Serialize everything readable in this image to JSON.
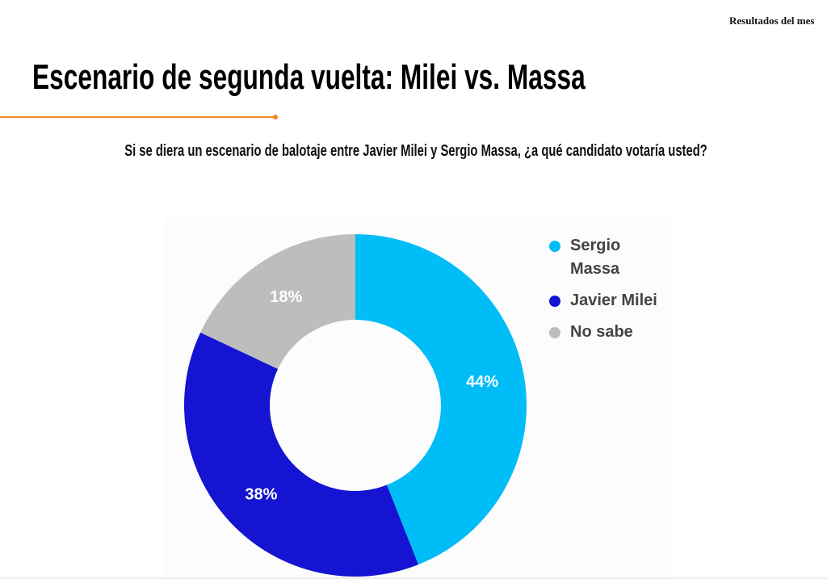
{
  "header": {
    "section": "Resultados del mes"
  },
  "chart_data": {
    "type": "pie",
    "title": "Escenario de segunda vuelta: Milei vs. Massa",
    "subtitle": "Si se diera un escenario de balotaje entre Javier Milei y Sergio Massa, ¿a qué candidato votaría usted?",
    "categories": [
      "Sergio Massa",
      "Javier Milei",
      "No sabe"
    ],
    "values": [
      44,
      38,
      18
    ],
    "value_labels": [
      "44%",
      "38%",
      "18%"
    ],
    "colors": [
      "#00bdf7",
      "#1414d2",
      "#bdbdbd"
    ],
    "donut": true,
    "legend": "right"
  }
}
